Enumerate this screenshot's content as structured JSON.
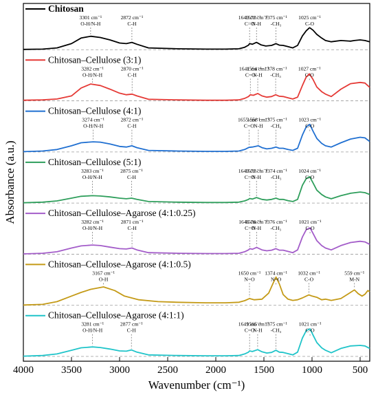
{
  "chart_data": {
    "type": "line",
    "xlabel": "Wavenumber (cm⁻¹)",
    "ylabel": "Absorbance (a.u.)",
    "xlim": [
      4000,
      400
    ],
    "x_reversed": true,
    "xticks": [
      4000,
      3500,
      3000,
      2500,
      2000,
      1500,
      1000,
      500
    ],
    "xtick_labels": [
      "4000",
      "3500",
      "3000",
      "2500",
      "2000",
      "1500",
      "1000",
      "500"
    ],
    "legend_placement": "each series labeled at top-left of its own panel",
    "stacked_offset": true,
    "series": [
      {
        "name": "Chitosan",
        "color": "#000000",
        "x": [
          4000,
          3800,
          3650,
          3500,
          3400,
          3300,
          3200,
          3100,
          3000,
          2930,
          2872,
          2820,
          2700,
          2400,
          2100,
          1900,
          1760,
          1700,
          1660,
          1649,
          1620,
          1577,
          1530,
          1480,
          1420,
          1375,
          1340,
          1300,
          1250,
          1200,
          1150,
          1100,
          1060,
          1025,
          990,
          950,
          900,
          860,
          800,
          700,
          600,
          560,
          500,
          450,
          400
        ],
        "y": [
          0.01,
          0.02,
          0.06,
          0.2,
          0.38,
          0.44,
          0.4,
          0.32,
          0.22,
          0.2,
          0.24,
          0.18,
          0.06,
          0.03,
          0.02,
          0.02,
          0.03,
          0.08,
          0.15,
          0.2,
          0.18,
          0.24,
          0.16,
          0.12,
          0.14,
          0.2,
          0.15,
          0.14,
          0.1,
          0.06,
          0.14,
          0.45,
          0.62,
          0.72,
          0.64,
          0.5,
          0.38,
          0.3,
          0.26,
          0.3,
          0.28,
          0.3,
          0.32,
          0.3,
          0.26
        ]
      },
      {
        "name": "Chitosan–Cellulose (3:1)",
        "color": "#e53935",
        "x": [
          4000,
          3800,
          3650,
          3500,
          3400,
          3300,
          3200,
          3100,
          3000,
          2930,
          2870,
          2820,
          2700,
          2400,
          2100,
          1900,
          1760,
          1700,
          1660,
          1641,
          1610,
          1564,
          1520,
          1470,
          1420,
          1378,
          1340,
          1300,
          1250,
          1200,
          1150,
          1100,
          1060,
          1027,
          990,
          950,
          900,
          860,
          800,
          700,
          600,
          500,
          450,
          400
        ],
        "y": [
          0.02,
          0.03,
          0.06,
          0.16,
          0.42,
          0.55,
          0.5,
          0.38,
          0.25,
          0.2,
          0.22,
          0.16,
          0.05,
          0.03,
          0.02,
          0.02,
          0.03,
          0.08,
          0.14,
          0.2,
          0.18,
          0.24,
          0.16,
          0.12,
          0.14,
          0.2,
          0.15,
          0.14,
          0.1,
          0.06,
          0.12,
          0.5,
          0.78,
          0.88,
          0.7,
          0.45,
          0.3,
          0.22,
          0.14,
          0.38,
          0.56,
          0.6,
          0.58,
          0.44
        ]
      },
      {
        "name": "Chitosan–Cellulose (4:1)",
        "color": "#1f6fd1",
        "x": [
          4000,
          3800,
          3650,
          3500,
          3400,
          3274,
          3200,
          3100,
          3000,
          2930,
          2872,
          2820,
          2700,
          2400,
          2100,
          1900,
          1760,
          1700,
          1655,
          1620,
          1558,
          1520,
          1470,
          1420,
          1375,
          1340,
          1300,
          1250,
          1200,
          1150,
          1100,
          1060,
          1023,
          990,
          950,
          900,
          860,
          800,
          700,
          600,
          500,
          450,
          400
        ],
        "y": [
          0.01,
          0.03,
          0.08,
          0.2,
          0.3,
          0.33,
          0.32,
          0.26,
          0.18,
          0.16,
          0.2,
          0.14,
          0.05,
          0.03,
          0.02,
          0.02,
          0.03,
          0.08,
          0.15,
          0.16,
          0.2,
          0.14,
          0.1,
          0.12,
          0.16,
          0.12,
          0.12,
          0.08,
          0.05,
          0.12,
          0.55,
          0.82,
          0.9,
          0.68,
          0.44,
          0.28,
          0.2,
          0.16,
          0.3,
          0.42,
          0.48,
          0.46,
          0.34
        ]
      },
      {
        "name": "Chitosan–Cellulose (5:1)",
        "color": "#2e9e5b",
        "x": [
          4000,
          3800,
          3650,
          3500,
          3400,
          3283,
          3200,
          3100,
          3000,
          2930,
          2875,
          2820,
          2700,
          2400,
          2100,
          1900,
          1760,
          1700,
          1660,
          1649,
          1620,
          1577,
          1520,
          1470,
          1420,
          1374,
          1340,
          1300,
          1250,
          1200,
          1150,
          1100,
          1060,
          1024,
          990,
          950,
          900,
          860,
          800,
          700,
          600,
          500,
          450,
          400
        ],
        "y": [
          0.01,
          0.03,
          0.07,
          0.16,
          0.22,
          0.24,
          0.23,
          0.2,
          0.16,
          0.14,
          0.16,
          0.12,
          0.05,
          0.03,
          0.02,
          0.02,
          0.03,
          0.07,
          0.12,
          0.15,
          0.13,
          0.18,
          0.12,
          0.1,
          0.12,
          0.16,
          0.12,
          0.12,
          0.08,
          0.05,
          0.12,
          0.58,
          0.8,
          0.86,
          0.66,
          0.42,
          0.28,
          0.2,
          0.14,
          0.24,
          0.32,
          0.36,
          0.34,
          0.28
        ]
      },
      {
        "name": "Chitosan–Cellulose–Agarose (4:1:0.25)",
        "color": "#a35cc9",
        "x": [
          4000,
          3800,
          3650,
          3500,
          3400,
          3282,
          3200,
          3100,
          3000,
          2930,
          2871,
          2820,
          2700,
          2400,
          2100,
          1900,
          1760,
          1700,
          1660,
          1646,
          1620,
          1576,
          1520,
          1470,
          1420,
          1376,
          1340,
          1300,
          1250,
          1200,
          1150,
          1100,
          1060,
          1021,
          990,
          950,
          900,
          860,
          800,
          700,
          600,
          500,
          450,
          400
        ],
        "y": [
          0.01,
          0.03,
          0.08,
          0.2,
          0.27,
          0.3,
          0.28,
          0.23,
          0.18,
          0.17,
          0.2,
          0.14,
          0.05,
          0.03,
          0.02,
          0.02,
          0.03,
          0.08,
          0.14,
          0.18,
          0.16,
          0.22,
          0.14,
          0.11,
          0.13,
          0.18,
          0.13,
          0.13,
          0.09,
          0.05,
          0.14,
          0.56,
          0.8,
          0.86,
          0.68,
          0.44,
          0.28,
          0.2,
          0.14,
          0.28,
          0.38,
          0.42,
          0.4,
          0.32
        ]
      },
      {
        "name": "Chitosan–Cellulose–Agarose (4:1:0.5)",
        "color": "#c49a16",
        "x": [
          4000,
          3800,
          3650,
          3500,
          3400,
          3300,
          3167,
          3050,
          2950,
          2800,
          2600,
          2400,
          2100,
          1900,
          1760,
          1700,
          1650,
          1600,
          1520,
          1450,
          1400,
          1374,
          1340,
          1300,
          1250,
          1200,
          1150,
          1100,
          1060,
          1032,
          1000,
          950,
          900,
          860,
          800,
          700,
          600,
          559,
          520,
          480,
          450,
          420,
          400
        ],
        "y": [
          0.01,
          0.03,
          0.12,
          0.3,
          0.42,
          0.52,
          0.6,
          0.48,
          0.3,
          0.18,
          0.12,
          0.1,
          0.08,
          0.08,
          0.1,
          0.15,
          0.22,
          0.18,
          0.2,
          0.4,
          0.75,
          0.92,
          0.7,
          0.35,
          0.2,
          0.16,
          0.18,
          0.24,
          0.3,
          0.34,
          0.3,
          0.26,
          0.18,
          0.2,
          0.16,
          0.22,
          0.42,
          0.5,
          0.38,
          0.3,
          0.36,
          0.48,
          0.44
        ]
      },
      {
        "name": "Chitosan–Cellulose–Agarose (4:1:1)",
        "color": "#1fc4c9",
        "x": [
          4000,
          3800,
          3650,
          3500,
          3400,
          3281,
          3200,
          3100,
          3000,
          2930,
          2877,
          2820,
          2700,
          2400,
          2100,
          1900,
          1760,
          1700,
          1660,
          1649,
          1620,
          1565,
          1520,
          1470,
          1420,
          1375,
          1340,
          1300,
          1250,
          1200,
          1150,
          1100,
          1060,
          1021,
          990,
          950,
          900,
          860,
          800,
          700,
          600,
          500,
          450,
          400
        ],
        "y": [
          0.01,
          0.03,
          0.08,
          0.2,
          0.28,
          0.31,
          0.29,
          0.24,
          0.18,
          0.17,
          0.21,
          0.14,
          0.05,
          0.03,
          0.02,
          0.02,
          0.03,
          0.08,
          0.14,
          0.18,
          0.16,
          0.22,
          0.15,
          0.11,
          0.13,
          0.2,
          0.14,
          0.13,
          0.09,
          0.05,
          0.14,
          0.6,
          0.84,
          0.9,
          0.7,
          0.45,
          0.28,
          0.2,
          0.12,
          0.26,
          0.34,
          0.36,
          0.34,
          0.26
        ]
      }
    ],
    "annotations": [
      [
        {
          "x": 3301,
          "lines": [
            "3301 cm⁻¹",
            "O-H/N-H"
          ]
        },
        {
          "x": 2872,
          "lines": [
            "2872 cm⁻¹",
            "C-H"
          ]
        },
        {
          "x": 1649,
          "lines": [
            "1649 cm⁻¹",
            "C=O"
          ]
        },
        {
          "x": 1577,
          "lines": [
            "1577 cm⁻¹",
            "N-H"
          ]
        },
        {
          "x": 1375,
          "lines": [
            "1375 cm⁻¹",
            "-CH₃"
          ]
        },
        {
          "x": 1025,
          "lines": [
            "1025 cm⁻¹",
            "C-O"
          ]
        }
      ],
      [
        {
          "x": 3282,
          "lines": [
            "3282 cm⁻¹",
            "O-H/N-H"
          ]
        },
        {
          "x": 2870,
          "lines": [
            "2870 cm⁻¹",
            "C-H"
          ]
        },
        {
          "x": 1641,
          "lines": [
            "1641 cm⁻¹",
            "C=O"
          ]
        },
        {
          "x": 1564,
          "lines": [
            "1564 cm⁻¹",
            "N-H"
          ]
        },
        {
          "x": 1378,
          "lines": [
            "1378 cm⁻¹",
            "-CH₃"
          ]
        },
        {
          "x": 1027,
          "lines": [
            "1027 cm⁻¹",
            "C-O"
          ]
        }
      ],
      [
        {
          "x": 3274,
          "lines": [
            "3274 cm⁻¹",
            "O-H/N-H"
          ]
        },
        {
          "x": 2872,
          "lines": [
            "2872 cm⁻¹",
            "C-H"
          ]
        },
        {
          "x": 1655,
          "lines": [
            "1655 cm⁻¹",
            "C=O"
          ]
        },
        {
          "x": 1558,
          "lines": [
            "1558 cm⁻¹",
            "N-H"
          ]
        },
        {
          "x": 1375,
          "lines": [
            "1375 cm⁻¹",
            "-CH₃"
          ]
        },
        {
          "x": 1023,
          "lines": [
            "1023 cm⁻¹",
            "C-O"
          ]
        }
      ],
      [
        {
          "x": 3283,
          "lines": [
            "3283 cm⁻¹",
            "O-H/N-H"
          ]
        },
        {
          "x": 2875,
          "lines": [
            "2875 cm⁻¹",
            "C-H"
          ]
        },
        {
          "x": 1649,
          "lines": [
            "1649 cm⁻¹",
            "C=O"
          ]
        },
        {
          "x": 1577,
          "lines": [
            "1577 cm⁻¹",
            "N-H"
          ]
        },
        {
          "x": 1374,
          "lines": [
            "1374 cm⁻¹",
            "-CH₃"
          ]
        },
        {
          "x": 1024,
          "lines": [
            "1024 cm⁻¹",
            "C-O"
          ]
        }
      ],
      [
        {
          "x": 3282,
          "lines": [
            "3282 cm⁻¹",
            "O-H/N-H"
          ]
        },
        {
          "x": 2871,
          "lines": [
            "2871 cm⁻¹",
            "C-H"
          ]
        },
        {
          "x": 1646,
          "lines": [
            "1646 cm⁻¹",
            "C=O"
          ]
        },
        {
          "x": 1576,
          "lines": [
            "1576 cm⁻¹",
            "N-H"
          ]
        },
        {
          "x": 1376,
          "lines": [
            "1376 cm⁻¹",
            "-CH₃"
          ]
        },
        {
          "x": 1021,
          "lines": [
            "1021 cm⁻¹",
            "C-O"
          ]
        }
      ],
      [
        {
          "x": 3167,
          "lines": [
            "3167 cm⁻¹",
            "O-H"
          ]
        },
        {
          "x": 1650,
          "lines": [
            "1650 cm⁻¹",
            "N=O"
          ]
        },
        {
          "x": 1374,
          "lines": [
            "1374 cm⁻¹",
            "N=O"
          ]
        },
        {
          "x": 1032,
          "lines": [
            "1032 cm⁻¹",
            "C-O"
          ]
        },
        {
          "x": 559,
          "lines": [
            "559 cm⁻¹",
            "M-N"
          ]
        }
      ],
      [
        {
          "x": 3281,
          "lines": [
            "3281 cm⁻¹",
            "O-H/N-H"
          ]
        },
        {
          "x": 2877,
          "lines": [
            "2877 cm⁻¹",
            "C-H"
          ]
        },
        {
          "x": 1649,
          "lines": [
            "1649 cm⁻¹",
            "C=O"
          ]
        },
        {
          "x": 1565,
          "lines": [
            "1565 cm⁻¹",
            "N-H"
          ]
        },
        {
          "x": 1375,
          "lines": [
            "1375 cm⁻¹",
            "-CH₃"
          ]
        },
        {
          "x": 1021,
          "lines": [
            "1021 cm⁻¹",
            "C-O"
          ]
        }
      ]
    ]
  }
}
